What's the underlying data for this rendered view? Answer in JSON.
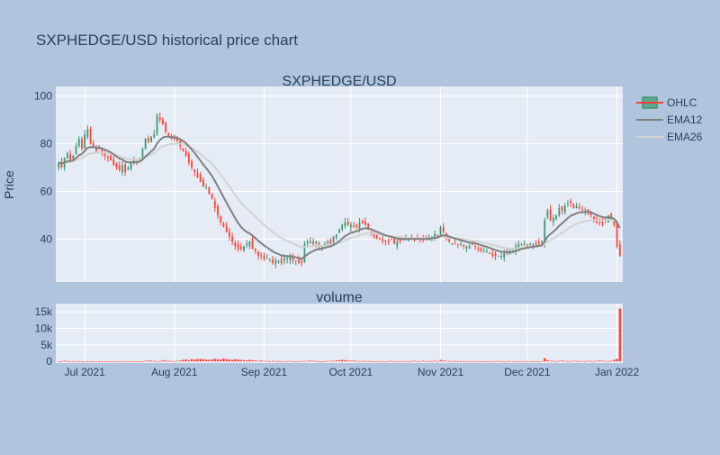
{
  "chart_data": {
    "type": "candlestick",
    "title": "SXPHEDGE/USD historical price chart",
    "subplot_titles": [
      "SXPHEDGE/USD",
      "volume"
    ],
    "ylabel": "Price",
    "price_ylim": [
      22,
      104
    ],
    "price_yticks": [
      "40",
      "60",
      "80",
      "100"
    ],
    "volume_ylim": [
      -500,
      17500
    ],
    "volume_yticks": [
      "0",
      "5k",
      "10k",
      "15k"
    ],
    "x_range": [
      "2021-06-21",
      "2022-01-03"
    ],
    "x_ticks": [
      {
        "date": "2021-07-01",
        "label": "Jul 2021"
      },
      {
        "date": "2021-08-01",
        "label": "Aug 2021"
      },
      {
        "date": "2021-09-01",
        "label": "Sep 2021"
      },
      {
        "date": "2021-10-01",
        "label": "Oct 2021"
      },
      {
        "date": "2021-11-01",
        "label": "Nov 2021"
      },
      {
        "date": "2021-12-01",
        "label": "Dec 2021"
      },
      {
        "date": "2022-01-01",
        "label": "Jan 2022"
      }
    ],
    "legend": [
      "OHLC",
      "EMA12",
      "EMA26"
    ],
    "legend_position": "top-right",
    "grid": true,
    "colors": {
      "up": "#3d9970",
      "down": "#ff4136",
      "ema12": "#808080",
      "ema26": "#d3d3d3"
    },
    "start_date": "2021-06-22",
    "close": [
      72,
      70,
      74,
      76,
      73,
      75,
      79,
      82,
      78,
      84,
      86,
      80,
      79,
      77,
      78,
      76,
      75,
      74,
      73,
      71,
      70,
      69,
      71,
      68,
      70,
      72,
      73,
      72,
      74,
      78,
      82,
      81,
      83,
      84,
      92,
      90,
      88,
      85,
      83,
      82,
      82,
      81,
      79,
      77,
      75,
      72,
      70,
      68,
      66,
      64,
      62,
      62,
      59,
      57,
      53,
      50,
      47,
      45,
      43,
      41,
      39,
      37,
      36,
      36,
      37,
      38,
      39,
      36,
      35,
      33,
      33,
      32,
      32,
      31,
      30,
      31,
      31,
      30,
      32,
      32,
      33,
      31,
      31,
      30,
      30,
      38,
      39,
      39,
      38,
      39,
      37,
      37,
      38,
      39,
      38,
      41,
      42,
      44,
      46,
      47,
      46,
      46,
      45,
      45,
      47,
      47,
      46,
      44,
      42,
      41,
      40,
      40,
      39,
      39,
      39,
      40,
      38,
      39,
      39,
      40,
      40,
      40,
      40,
      40,
      40,
      40,
      40,
      40,
      41,
      41,
      42,
      41,
      45,
      43,
      41,
      39,
      38,
      38,
      38,
      38,
      37,
      37,
      37,
      38,
      37,
      36,
      35,
      35,
      35,
      34,
      33,
      33,
      33,
      33,
      34,
      34,
      35,
      35,
      37,
      38,
      38,
      38,
      37,
      38,
      38,
      38,
      38,
      39,
      48,
      52,
      48,
      49,
      50,
      53,
      52,
      54,
      55,
      55,
      53,
      54,
      53,
      52,
      52,
      51,
      50,
      48,
      47,
      47,
      47,
      48,
      50,
      48,
      46,
      37,
      33
    ],
    "volume": [
      0,
      100,
      200,
      150,
      100,
      100,
      50,
      100,
      0,
      50,
      100,
      50,
      50,
      0,
      100,
      50,
      0,
      50,
      100,
      0,
      100,
      50,
      0,
      100,
      0,
      100,
      50,
      0,
      50,
      100,
      200,
      300,
      250,
      200,
      100,
      150,
      400,
      300,
      200,
      150,
      100,
      200,
      300,
      500,
      600,
      400,
      700,
      600,
      700,
      800,
      700,
      600,
      500,
      600,
      800,
      700,
      600,
      900,
      700,
      600,
      500,
      700,
      600,
      500,
      400,
      300,
      500,
      400,
      300,
      200,
      300,
      200,
      150,
      100,
      200,
      100,
      150,
      100,
      50,
      100,
      150,
      100,
      50,
      100,
      100,
      200,
      150,
      300,
      200,
      100,
      100,
      50,
      100,
      150,
      200,
      200,
      300,
      400,
      500,
      400,
      300,
      200,
      300,
      200,
      100,
      200,
      100,
      150,
      100,
      50,
      100,
      50,
      100,
      50,
      100,
      200,
      100,
      50,
      100,
      100,
      100,
      100,
      150,
      200,
      100,
      100,
      200,
      100,
      100,
      100,
      200,
      100,
      500,
      300,
      200,
      100,
      100,
      150,
      100,
      100,
      50,
      100,
      50,
      100,
      50,
      100,
      50,
      100,
      50,
      100,
      50,
      100,
      150,
      100,
      50,
      100,
      100,
      50,
      100,
      50,
      100,
      50,
      100,
      50,
      100,
      100,
      50,
      100,
      1000,
      400,
      200,
      150,
      100,
      200,
      300,
      200,
      150,
      100,
      200,
      150,
      100,
      150,
      100,
      200,
      150,
      100,
      200,
      300,
      200,
      150,
      100,
      200,
      500,
      800,
      16000
    ]
  }
}
